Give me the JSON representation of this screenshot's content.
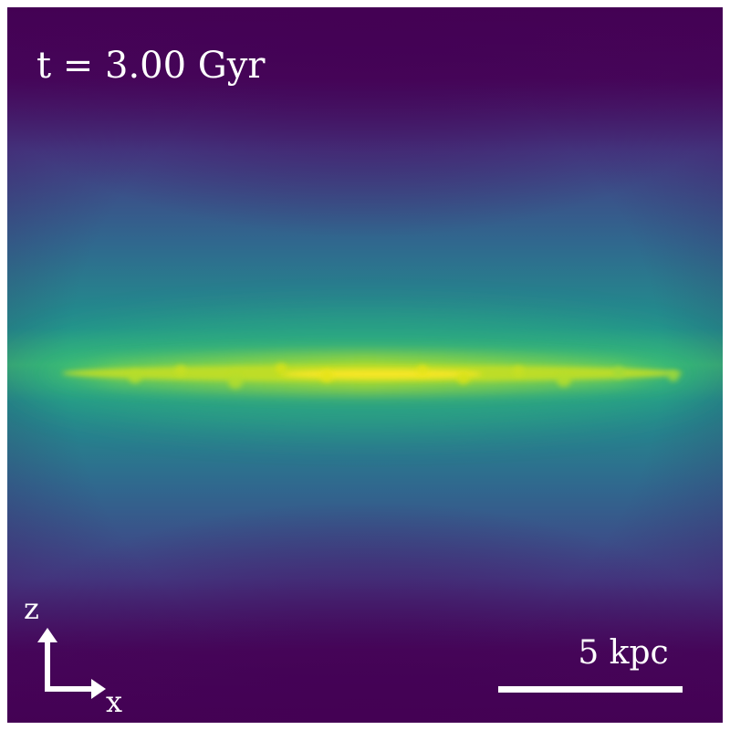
{
  "image": {
    "colormap": "viridis",
    "colors": {
      "background_low": "#440154",
      "mid_low": "#3b528b",
      "mid": "#21918c",
      "mid_high": "#5ec962",
      "peak": "#fde725",
      "annotation": "#ffffff"
    }
  },
  "annotations": {
    "time": "t = 3.00 Gyr",
    "axis_vertical": "z",
    "axis_horizontal": "x",
    "scale_label": "5 kpc"
  },
  "icons": {
    "axes": "axes-arrows-icon"
  }
}
